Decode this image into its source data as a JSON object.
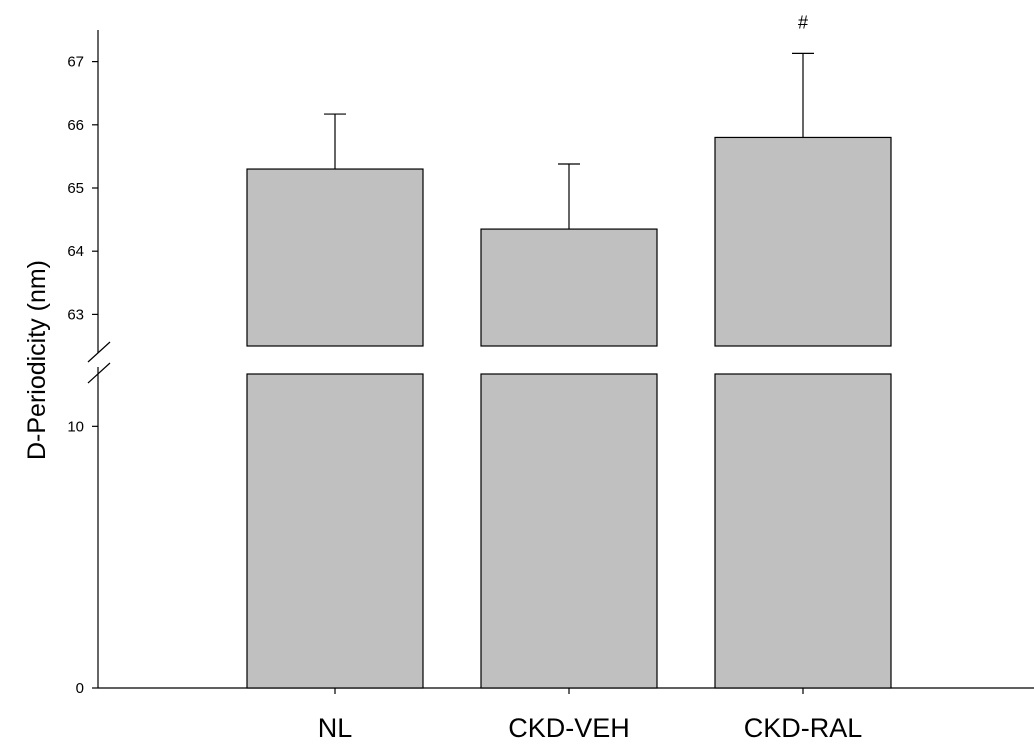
{
  "chart_data": {
    "type": "bar",
    "title": "",
    "xlabel": "",
    "ylabel": "D-Periodicity (nm)",
    "categories": [
      "NL",
      "CKD-VEH",
      "CKD-RAL"
    ],
    "values": [
      65.3,
      64.35,
      65.8
    ],
    "error_upper": [
      0.87,
      1.03,
      1.33
    ],
    "annotations": [
      "",
      "",
      "#"
    ],
    "axis_break": true,
    "ylim_lower_segment": [
      0,
      12
    ],
    "ylim_upper_segment": [
      62.5,
      67.5
    ],
    "yticks_lower": [
      0,
      10
    ],
    "yticks_upper": [
      63,
      64,
      65,
      66,
      67
    ],
    "grid": false,
    "legend": "none",
    "colors": {
      "bar_fill": "#c0c0c0",
      "bar_stroke": "#000000",
      "axis": "#000000"
    }
  }
}
